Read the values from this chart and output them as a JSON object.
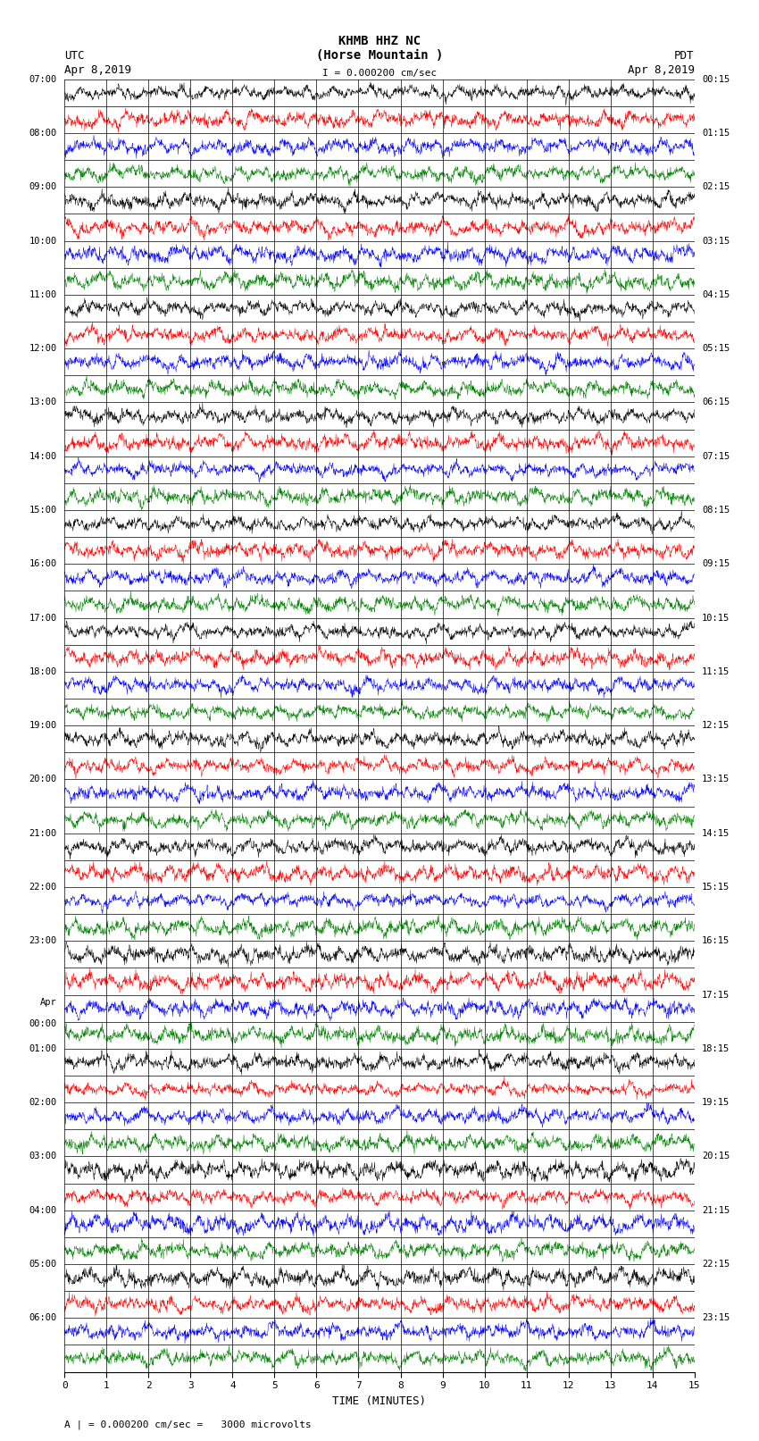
{
  "title_line1": "KHMB HHZ NC",
  "title_line2": "(Horse Mountain )",
  "scale_text": "I = 0.000200 cm/sec",
  "left_label_utc": "UTC",
  "left_label_date": "Apr 8,2019",
  "right_label_pdt": "PDT",
  "right_label_date": "Apr 8,2019",
  "bottom_label": "A | = 0.000200 cm/sec =   3000 microvolts",
  "xlabel": "TIME (MINUTES)",
  "left_times": [
    "07:00",
    "08:00",
    "09:00",
    "10:00",
    "11:00",
    "12:00",
    "13:00",
    "14:00",
    "15:00",
    "16:00",
    "17:00",
    "18:00",
    "19:00",
    "20:00",
    "21:00",
    "22:00",
    "23:00",
    "Apr\n00:00",
    "01:00",
    "02:00",
    "03:00",
    "04:00",
    "05:00",
    "06:00"
  ],
  "right_times": [
    "00:15",
    "01:15",
    "02:15",
    "03:15",
    "04:15",
    "05:15",
    "06:15",
    "07:15",
    "08:15",
    "09:15",
    "10:15",
    "11:15",
    "12:15",
    "13:15",
    "14:15",
    "15:15",
    "16:15",
    "17:15",
    "18:15",
    "19:15",
    "20:15",
    "21:15",
    "22:15",
    "23:15"
  ],
  "n_rows": 48,
  "n_samples": 2000,
  "trace_colors_cycle": [
    "black",
    "red",
    "blue",
    "green"
  ],
  "amplitude": 0.48,
  "background_color": "white"
}
